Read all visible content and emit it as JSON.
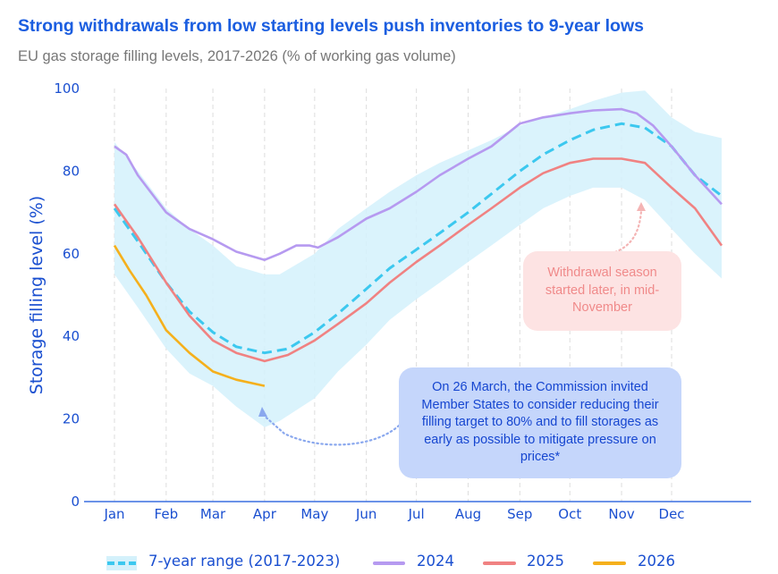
{
  "title": "Strong withdrawals from low starting levels push inventories to 9-year lows",
  "subtitle": "EU gas storage filling levels, 2017-2026 (% of working gas volume)",
  "chart_data": {
    "type": "line",
    "ylabel": "Storage filling level (%)",
    "ylim": [
      0,
      100
    ],
    "yticks": [
      "0",
      "20",
      "40",
      "60",
      "80",
      "100"
    ],
    "xticks": [
      {
        "label": "Jan",
        "date": "01-01"
      },
      {
        "label": "Feb",
        "date": "02-01"
      },
      {
        "label": "Mar",
        "date": "03-01"
      },
      {
        "label": "Apr",
        "date": "04-01"
      },
      {
        "label": "May",
        "date": "05-01"
      },
      {
        "label": "Jun",
        "date": "06-01"
      },
      {
        "label": "Jul",
        "date": "07-01"
      },
      {
        "label": "Aug",
        "date": "08-01"
      },
      {
        "label": "Sep",
        "date": "09-01"
      },
      {
        "label": "Oct",
        "date": "10-01"
      },
      {
        "label": "Nov",
        "date": "11-01"
      },
      {
        "label": "Dec",
        "date": "12-01"
      }
    ],
    "grid": "vertical dashed at month starts",
    "legend_position": "bottom",
    "range": {
      "name": "7-year range (2017-2023)",
      "color": "#d4f1fb",
      "upper": [
        [
          "01-01",
          87
        ],
        [
          "01-15",
          80
        ],
        [
          "02-01",
          71
        ],
        [
          "02-15",
          66
        ],
        [
          "03-01",
          62
        ],
        [
          "03-15",
          57
        ],
        [
          "04-01",
          55
        ],
        [
          "04-10",
          55
        ],
        [
          "05-01",
          60
        ],
        [
          "05-15",
          66
        ],
        [
          "06-01",
          71
        ],
        [
          "06-15",
          75
        ],
        [
          "07-01",
          79
        ],
        [
          "07-15",
          82
        ],
        [
          "08-01",
          85
        ],
        [
          "08-15",
          87.5
        ],
        [
          "09-01",
          91
        ],
        [
          "09-15",
          93
        ],
        [
          "10-01",
          95
        ],
        [
          "10-15",
          97
        ],
        [
          "11-01",
          99
        ],
        [
          "11-15",
          99.5
        ],
        [
          "12-01",
          93
        ],
        [
          "12-15",
          89.5
        ],
        [
          "12-31",
          88
        ]
      ],
      "lower": [
        [
          "01-01",
          55
        ],
        [
          "01-15",
          47
        ],
        [
          "02-01",
          37
        ],
        [
          "02-15",
          31
        ],
        [
          "03-01",
          28
        ],
        [
          "03-15",
          23
        ],
        [
          "04-01",
          18
        ],
        [
          "04-10",
          19.5
        ],
        [
          "05-01",
          25
        ],
        [
          "05-15",
          31.5
        ],
        [
          "06-01",
          38
        ],
        [
          "06-15",
          44
        ],
        [
          "07-01",
          49
        ],
        [
          "07-15",
          53
        ],
        [
          "08-01",
          58
        ],
        [
          "08-15",
          62
        ],
        [
          "09-01",
          67
        ],
        [
          "09-15",
          71
        ],
        [
          "10-01",
          74
        ],
        [
          "10-15",
          76
        ],
        [
          "11-01",
          76
        ],
        [
          "11-15",
          73
        ],
        [
          "12-01",
          66
        ],
        [
          "12-15",
          60
        ],
        [
          "12-31",
          54
        ]
      ]
    },
    "series": [
      {
        "name": "7-year range (2017-2023)",
        "color": "#3cc8ef",
        "dashed": true,
        "points": [
          [
            "01-01",
            71
          ],
          [
            "01-15",
            63
          ],
          [
            "02-01",
            53
          ],
          [
            "02-15",
            46
          ],
          [
            "03-01",
            41
          ],
          [
            "03-15",
            37.5
          ],
          [
            "04-01",
            36
          ],
          [
            "04-15",
            37
          ],
          [
            "05-01",
            41
          ],
          [
            "05-15",
            45.5
          ],
          [
            "06-01",
            51.5
          ],
          [
            "06-15",
            56.5
          ],
          [
            "07-01",
            61
          ],
          [
            "07-15",
            65
          ],
          [
            "08-01",
            70
          ],
          [
            "08-15",
            74.5
          ],
          [
            "09-01",
            80
          ],
          [
            "09-15",
            84
          ],
          [
            "10-01",
            87.5
          ],
          [
            "10-15",
            90
          ],
          [
            "11-01",
            91.5
          ],
          [
            "11-15",
            90.5
          ],
          [
            "12-01",
            86
          ],
          [
            "12-15",
            79
          ],
          [
            "12-31",
            74
          ]
        ]
      },
      {
        "name": "2024",
        "color": "#b69af0",
        "points": [
          [
            "01-01",
            86
          ],
          [
            "01-08",
            84
          ],
          [
            "01-15",
            79
          ],
          [
            "02-01",
            70
          ],
          [
            "02-15",
            66
          ],
          [
            "03-01",
            63.5
          ],
          [
            "03-15",
            60.5
          ],
          [
            "04-01",
            58.5
          ],
          [
            "04-10",
            60
          ],
          [
            "04-20",
            62
          ],
          [
            "04-28",
            62
          ],
          [
            "05-03",
            61.5
          ],
          [
            "05-15",
            64
          ],
          [
            "06-01",
            68.5
          ],
          [
            "06-15",
            71
          ],
          [
            "07-01",
            75
          ],
          [
            "07-15",
            79
          ],
          [
            "08-01",
            83
          ],
          [
            "08-15",
            86
          ],
          [
            "09-01",
            91.5
          ],
          [
            "09-15",
            93
          ],
          [
            "10-01",
            94
          ],
          [
            "10-15",
            94.7
          ],
          [
            "11-01",
            95
          ],
          [
            "11-10",
            94
          ],
          [
            "11-20",
            91
          ],
          [
            "12-01",
            86
          ],
          [
            "12-15",
            79
          ],
          [
            "12-31",
            72
          ]
        ]
      },
      {
        "name": "2025",
        "color": "#f08282",
        "points": [
          [
            "01-01",
            72
          ],
          [
            "01-15",
            64
          ],
          [
            "02-01",
            53
          ],
          [
            "02-15",
            45
          ],
          [
            "03-01",
            39
          ],
          [
            "03-15",
            36
          ],
          [
            "04-01",
            34
          ],
          [
            "04-15",
            35.5
          ],
          [
            "05-01",
            39
          ],
          [
            "05-15",
            43
          ],
          [
            "06-01",
            48
          ],
          [
            "06-15",
            53
          ],
          [
            "07-01",
            58
          ],
          [
            "07-15",
            62
          ],
          [
            "08-01",
            67
          ],
          [
            "08-15",
            71
          ],
          [
            "09-01",
            76
          ],
          [
            "09-15",
            79.5
          ],
          [
            "10-01",
            82
          ],
          [
            "10-15",
            83
          ],
          [
            "11-01",
            83
          ],
          [
            "11-15",
            82
          ],
          [
            "12-01",
            76
          ],
          [
            "12-15",
            71
          ],
          [
            "12-31",
            62
          ]
        ]
      },
      {
        "name": "2026",
        "color": "#f5b01c",
        "points": [
          [
            "01-01",
            62
          ],
          [
            "01-10",
            56
          ],
          [
            "01-20",
            50
          ],
          [
            "02-01",
            41.5
          ],
          [
            "02-15",
            36
          ],
          [
            "03-01",
            31.5
          ],
          [
            "03-15",
            29.5
          ],
          [
            "04-01",
            28
          ]
        ]
      }
    ],
    "annotations": [
      {
        "text": "Withdrawal season started later, in mid-November",
        "color": "#f08a8a",
        "background": "#fde3e3"
      },
      {
        "text": "On 26 March, the Commission invited Member States to consider reducing their filling target to 80% and to fill storages as early as possible to mitigate pressure on prices*",
        "color": "#1646d0",
        "background": "#c5d6fb"
      }
    ]
  }
}
